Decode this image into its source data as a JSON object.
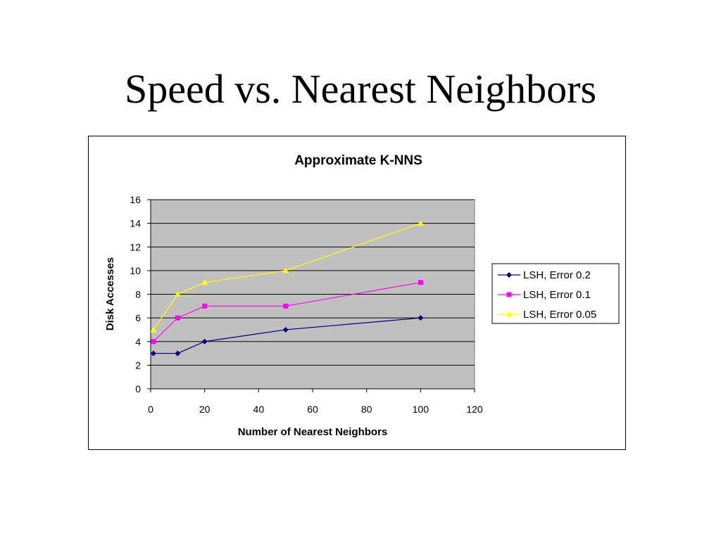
{
  "slide": {
    "title": "Speed vs. Nearest Neighbors"
  },
  "chart_data": {
    "type": "line",
    "title": "Approximate K-NNS",
    "xlabel": "Number of Nearest Neighbors",
    "ylabel": "Disk Accesses",
    "xlim": [
      0,
      120
    ],
    "ylim": [
      0,
      16
    ],
    "xticks": [
      0,
      20,
      40,
      60,
      80,
      100,
      120
    ],
    "yticks": [
      0,
      2,
      4,
      6,
      8,
      10,
      12,
      14,
      16
    ],
    "grid": "horizontal",
    "plot_background": "#c0c0c0",
    "legend_position": "right",
    "series": [
      {
        "name": "LSH, Error 0.2",
        "color": "#000080",
        "marker": "diamond",
        "x": [
          1,
          10,
          20,
          50,
          100
        ],
        "y": [
          3,
          3,
          4,
          5,
          6
        ]
      },
      {
        "name": "LSH, Error 0.1",
        "color": "#ff00ff",
        "marker": "square",
        "x": [
          1,
          10,
          20,
          50,
          100
        ],
        "y": [
          4,
          6,
          7,
          7,
          9
        ]
      },
      {
        "name": "LSH, Error 0.05",
        "color": "#ffff00",
        "marker": "triangle",
        "x": [
          1,
          10,
          20,
          50,
          100
        ],
        "y": [
          5,
          8,
          9,
          10,
          14
        ]
      }
    ]
  }
}
